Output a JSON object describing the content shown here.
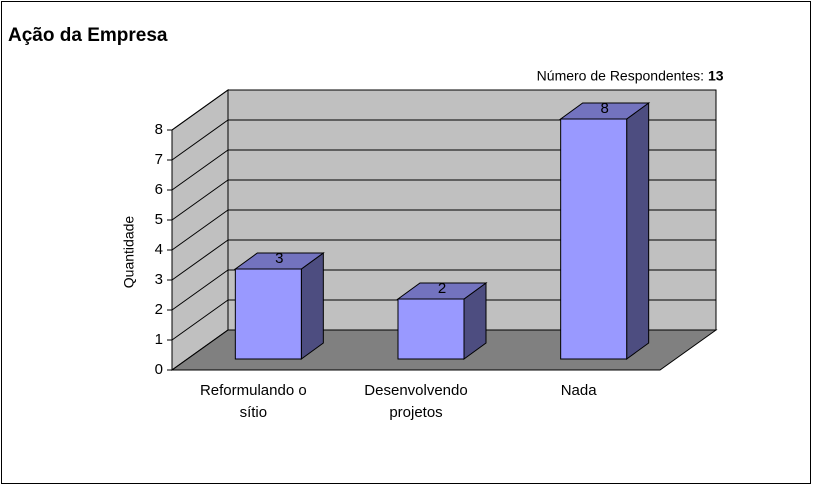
{
  "chart_data": {
    "type": "bar3d",
    "title": "Ação da Empresa",
    "annotation": {
      "label": "Número de Respondentes:",
      "value": 13
    },
    "ylabel": "Quantidade",
    "categories": [
      "Reformulando o sítio",
      "Desenvolvendo projetos",
      "Nada"
    ],
    "values": [
      3,
      2,
      8
    ],
    "color": "#9999ff",
    "ylim": [
      0,
      8
    ],
    "yticks": [
      0,
      1,
      2,
      3,
      4,
      5,
      6,
      7,
      8
    ],
    "grid": true
  }
}
